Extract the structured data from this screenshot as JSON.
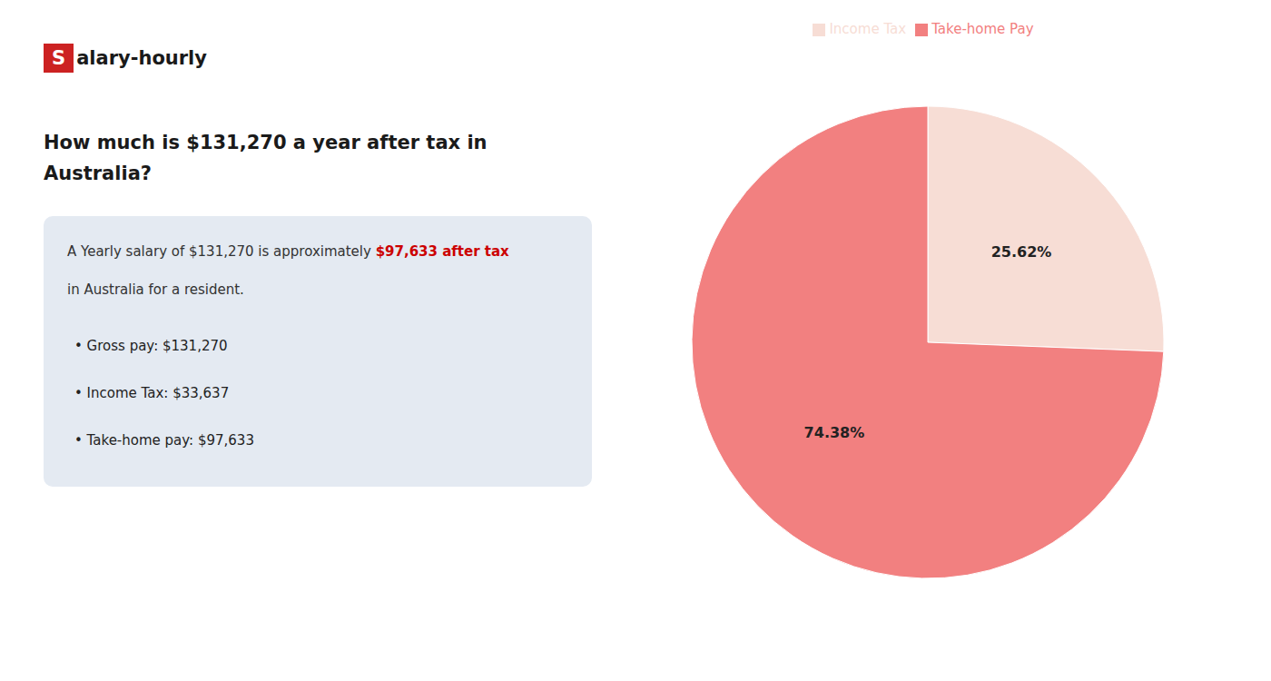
{
  "chart_data": {
    "type": "pie",
    "title": [
      "How much is $131,270 a year after tax in",
      "Australia?"
    ],
    "annotations": [
      [
        {
          "text": "S",
          "color": "#ffffff",
          "background": "#cc2222"
        },
        {
          "text": "alary-hourly",
          "color": "#1a1a1a"
        }
      ],
      [
        {
          "text": "A Yearly salary of $131,270 is approximately ",
          "color": "#333333"
        },
        {
          "text": "$97,633 after tax",
          "color": "#cc0000"
        }
      ],
      [
        {
          "text": "in Australia for a resident.",
          "color": "#333333"
        }
      ],
      [
        {
          "text": "•  Gross pay: $131,270",
          "color": "#222222"
        }
      ],
      [
        {
          "text": "•  Income Tax: $33,637",
          "color": "#222222"
        }
      ],
      [
        {
          "text": "•  Take-home pay: $97,633",
          "color": "#222222"
        }
      ]
    ],
    "categories": [
      "Income Tax",
      "Take-home Pay"
    ],
    "values": [
      25.62,
      74.38
    ],
    "colors": [
      "#f7ddd5",
      "#f28080"
    ],
    "data_labels": true,
    "value_labels": [
      "25.62%",
      "74.38%"
    ],
    "legend": "top"
  }
}
